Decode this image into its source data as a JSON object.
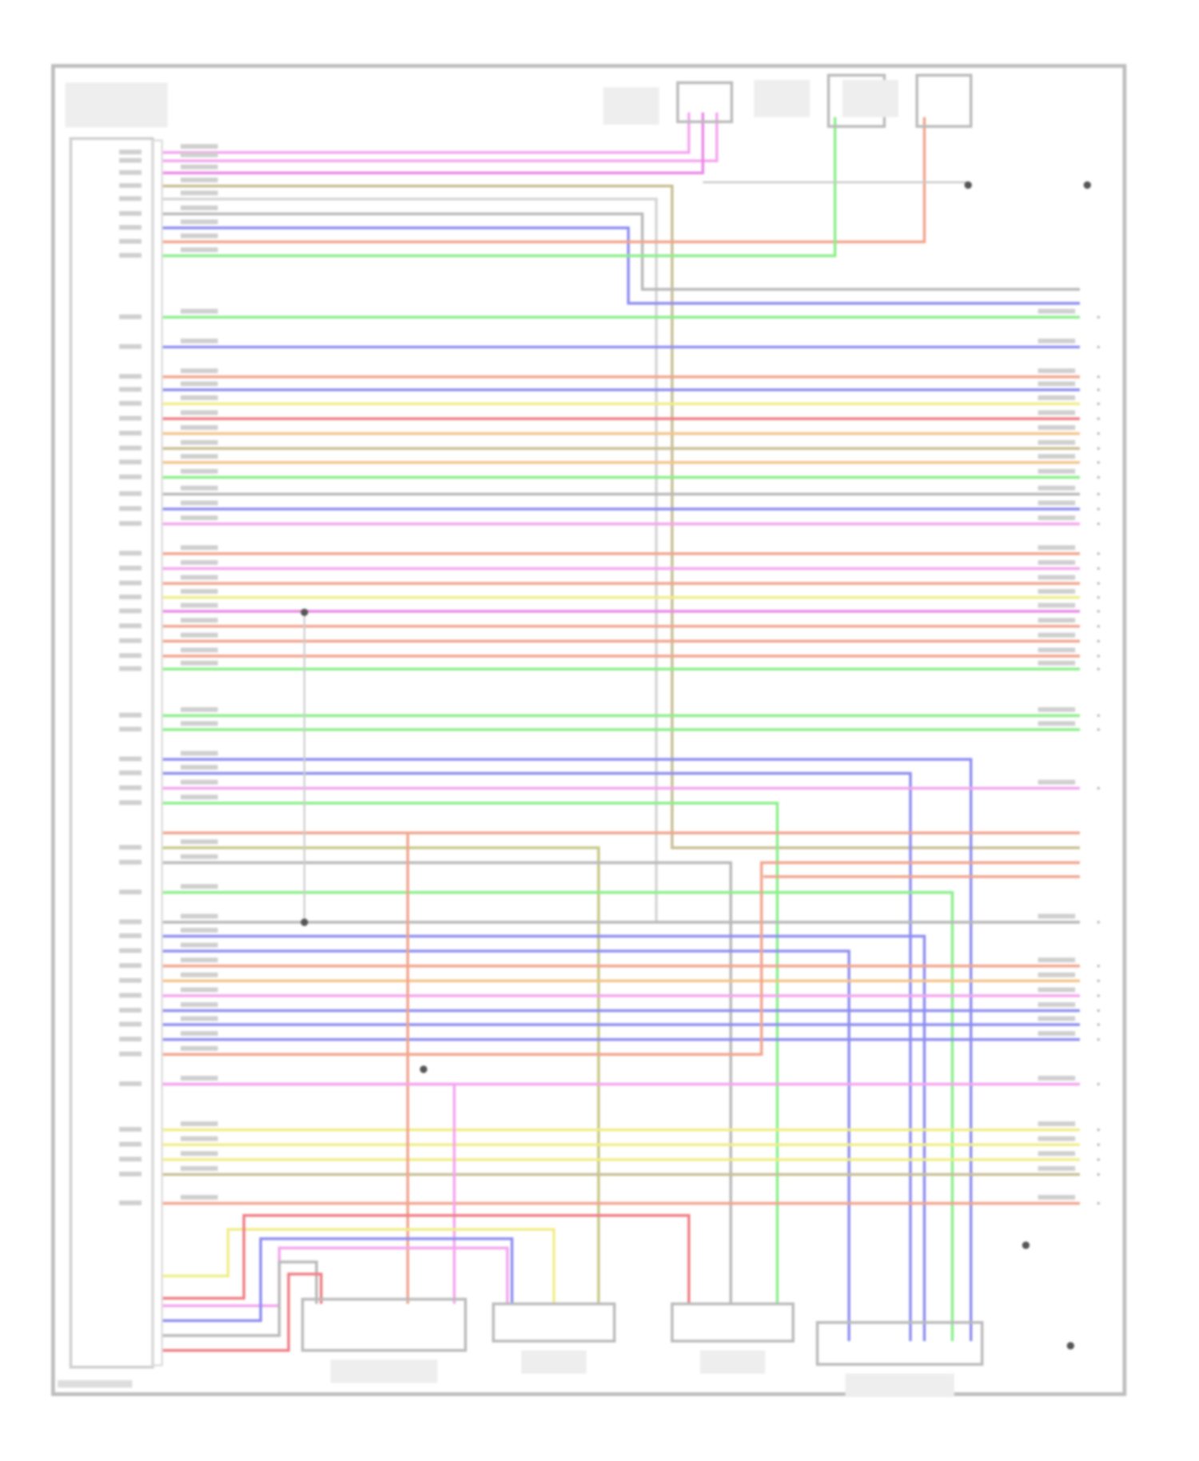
{
  "diagram": {
    "type": "wiring-diagram",
    "text_legible": false,
    "colors": {
      "pink": "#f4a6ee",
      "magenta": "#e98be6",
      "tan": "#c8bf96",
      "lightgray": "#d6d6d6",
      "gray": "#b9b9b9",
      "blue": "#8f8ef0",
      "salmon": "#f1a58f",
      "green": "#8cef8c",
      "yellow": "#f0ee8a",
      "orange": "#f4c58c",
      "red": "#ef7f86",
      "olive": "#c9c98a",
      "frame": "#bdbdbd"
    },
    "main_wires": [
      "pink",
      "pink",
      "magenta",
      "tan",
      "lightgray",
      "gray",
      "blue",
      "salmon",
      "green",
      "green",
      "blue",
      "salmon",
      "blue",
      "yellow",
      "red",
      "orange",
      "tan",
      "orange",
      "green",
      "gray",
      "blue",
      "pink",
      "salmon",
      "pink",
      "salmon",
      "yellow",
      "magenta",
      "salmon",
      "salmon",
      "salmon",
      "green",
      "green",
      "green",
      "blue",
      "blue",
      "pink",
      "green",
      "olive",
      "gray",
      "green",
      "gray",
      "blue",
      "blue",
      "salmon",
      "orange",
      "pink",
      "blue",
      "blue",
      "blue",
      "salmon",
      "pink",
      "yellow",
      "yellow",
      "yellow",
      "tan",
      "salmon"
    ],
    "bottom_wires": [
      "yellow",
      "red",
      "pink",
      "blue",
      "gray",
      "red"
    ],
    "components": {
      "top": 3,
      "bottom": 4
    }
  }
}
